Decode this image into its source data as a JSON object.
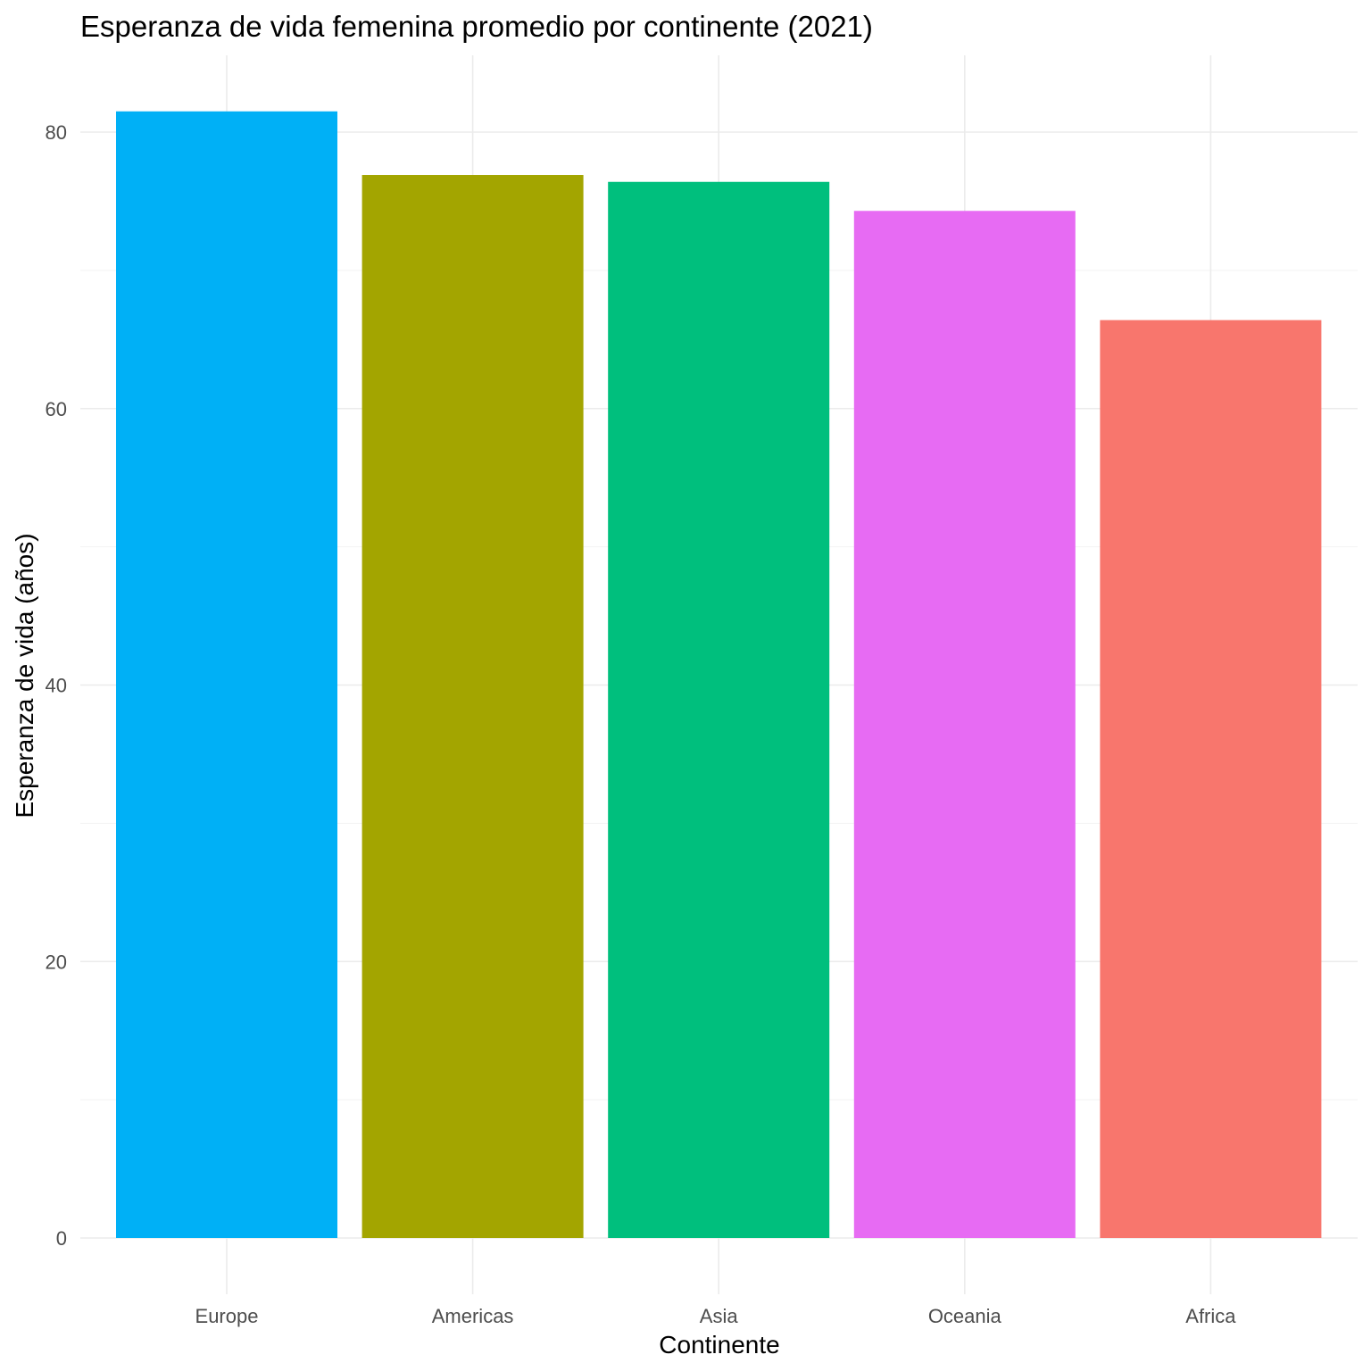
{
  "chart_data": {
    "type": "bar",
    "title": "Esperanza de vida femenina promedio por continente (2021)",
    "xlabel": "Continente",
    "ylabel": "Esperanza de vida (años)",
    "categories": [
      "Europe",
      "Americas",
      "Asia",
      "Oceania",
      "Africa"
    ],
    "values": [
      81.5,
      76.9,
      76.4,
      74.3,
      66.4
    ],
    "colors": [
      "#00B0F6",
      "#A3A500",
      "#00BF7D",
      "#E76BF3",
      "#F8766D"
    ],
    "ylim": [
      0,
      84
    ],
    "yticks": [
      0,
      20,
      40,
      60,
      80
    ],
    "ytick_labels": [
      "0",
      "20",
      "40",
      "60",
      "80"
    ],
    "grid": true,
    "legend": "none"
  }
}
